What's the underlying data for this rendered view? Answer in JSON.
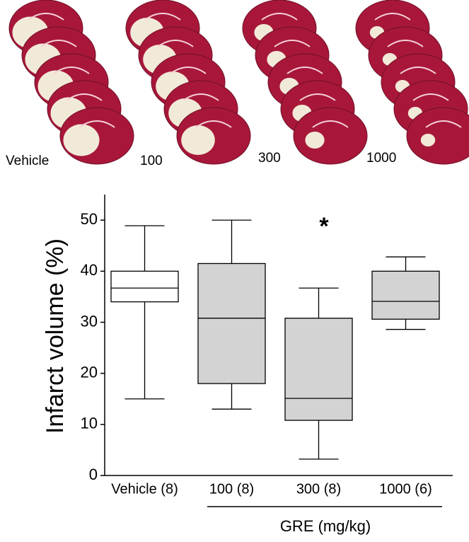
{
  "image_labels": [
    "Vehicle",
    "100",
    "300",
    "1000"
  ],
  "chart_data": {
    "type": "box",
    "y_label": "Infarct volume (%)",
    "categories": [
      "Vehicle (8)",
      "100 (8)",
      "300 (8)",
      "1000 (6)"
    ],
    "min": [
      15,
      13,
      3.2,
      28.6
    ],
    "q1": [
      34,
      18,
      10.8,
      30.6
    ],
    "median": [
      36.7,
      30.8,
      15.1,
      34.1
    ],
    "q3": [
      40,
      41.5,
      30.8,
      40
    ],
    "max": [
      48.9,
      50,
      36.7,
      42.8
    ],
    "colors": [
      "#ffffff",
      "#d3d3d3",
      "#d3d3d3",
      "#d3d3d3"
    ],
    "annotation": "*",
    "group_label": "GRE (mg/kg)",
    "ylim": [
      0,
      55
    ],
    "yticks": [
      0,
      10,
      20,
      30,
      40,
      50
    ]
  }
}
